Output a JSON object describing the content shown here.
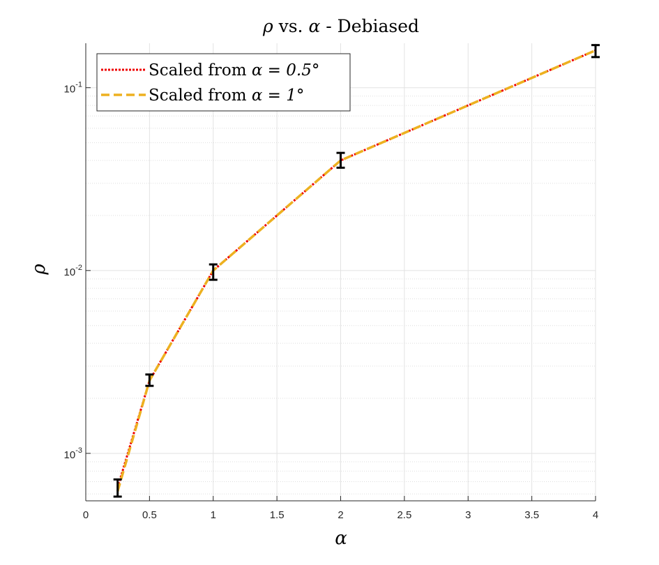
{
  "chart_data": {
    "type": "line",
    "title_parts": {
      "before": "ρ",
      "middle": " vs. ",
      "symbol": "α",
      "after": " - Debiased"
    },
    "xlabel": "α",
    "ylabel": "ρ",
    "x_scale": "linear",
    "y_scale": "log",
    "xlim": [
      0,
      4
    ],
    "ylim": [
      0.00055,
      0.175
    ],
    "x_ticks": [
      0,
      0.5,
      1,
      1.5,
      2,
      2.5,
      3,
      3.5,
      4
    ],
    "x_tick_labels": [
      "0",
      "0.5",
      "1",
      "1.5",
      "2",
      "2.5",
      "3",
      "3.5",
      "4"
    ],
    "y_ticks": [
      {
        "value": 0.001,
        "base": "10",
        "exp": "-3"
      },
      {
        "value": 0.01,
        "base": "10",
        "exp": "-2"
      },
      {
        "value": 0.1,
        "base": "10",
        "exp": "-1"
      }
    ],
    "grid": true,
    "minor_grid_y": true,
    "legend_position": "top-left",
    "series": [
      {
        "name_prefix": "Scaled from ",
        "name_math": "α = 0.5°",
        "color": "#ee0000",
        "style": "dotted",
        "x": [
          0.25,
          0.5,
          1,
          2,
          4
        ],
        "y": [
          0.00065,
          0.0025,
          0.01,
          0.04,
          0.16
        ]
      },
      {
        "name_prefix": "Scaled from ",
        "name_math": "α = 1°",
        "color": "#edb120",
        "style": "dashed",
        "x": [
          0.25,
          0.5,
          1,
          2,
          4
        ],
        "y": [
          0.00062,
          0.0025,
          0.01,
          0.04,
          0.16
        ]
      }
    ],
    "error_bars": {
      "color": "#000000",
      "x": [
        0.25,
        0.5,
        1,
        2,
        4
      ],
      "center": [
        0.00065,
        0.0025,
        0.0098,
        0.04,
        0.16
      ],
      "lower": [
        0.00058,
        0.00234,
        0.0089,
        0.0365,
        0.147
      ],
      "upper": [
        0.00072,
        0.0027,
        0.0108,
        0.044,
        0.171
      ]
    }
  }
}
